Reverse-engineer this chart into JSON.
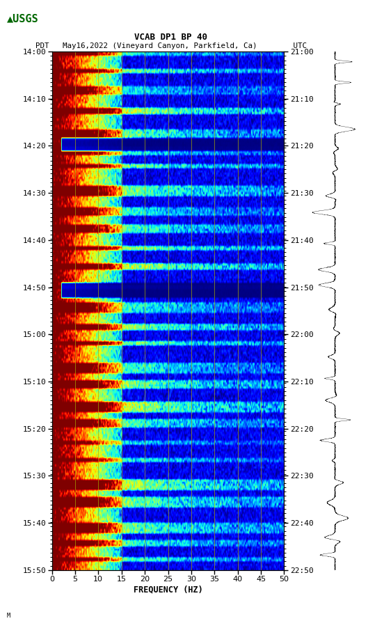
{
  "title_line1": "VCAB DP1 BP 40",
  "title_line2": "PDT   May16,2022 (Vineyard Canyon, Parkfield, Ca)        UTC",
  "xlabel": "FREQUENCY (HZ)",
  "freq_min": 0,
  "freq_max": 50,
  "ytick_pdt": [
    "14:00",
    "14:10",
    "14:20",
    "14:30",
    "14:40",
    "14:50",
    "15:00",
    "15:10",
    "15:20",
    "15:30",
    "15:40",
    "15:50"
  ],
  "ytick_utc": [
    "21:00",
    "21:10",
    "21:20",
    "21:30",
    "21:40",
    "21:50",
    "22:00",
    "22:10",
    "22:20",
    "22:30",
    "22:40",
    "22:50"
  ],
  "xticks": [
    0,
    5,
    10,
    15,
    20,
    25,
    30,
    35,
    40,
    45,
    50
  ],
  "vlines_freq": [
    5,
    10,
    15,
    20,
    25,
    30,
    35,
    40,
    45
  ],
  "background_color": "#ffffff",
  "spectrogram_cmap": "jet",
  "fig_width": 5.52,
  "fig_height": 8.92,
  "usgs_color": "#006600"
}
